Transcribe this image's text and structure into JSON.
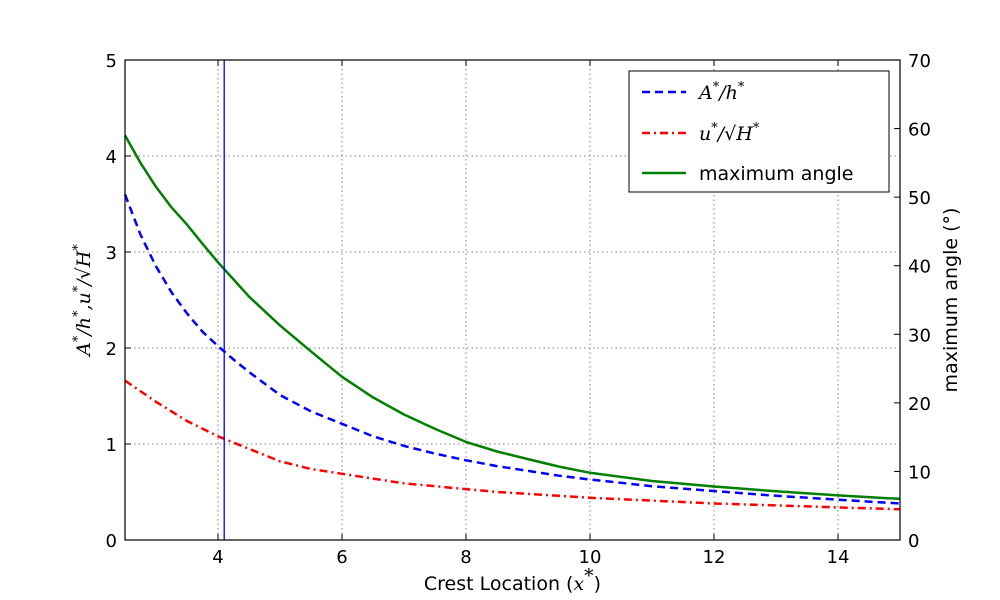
{
  "chart_data": {
    "type": "line",
    "xlabel": "Crest Location (x*)",
    "ylabel_left": "A*/h*, u*/√H*",
    "ylabel_right": "maximum angle (°)",
    "xlim": [
      2.5,
      15
    ],
    "ylim_left": [
      0,
      5
    ],
    "ylim_right": [
      0,
      70
    ],
    "x_ticks": [
      4,
      6,
      8,
      10,
      12,
      14
    ],
    "y_ticks_left": [
      0,
      1,
      2,
      3,
      4,
      5
    ],
    "y_ticks_right": [
      0,
      10,
      20,
      30,
      40,
      50,
      60,
      70
    ],
    "grid": true,
    "legend_position": "top-right",
    "vline_x": 4.1,
    "colors": {
      "amplitude": "#0000ff",
      "velocity": "#ff0000",
      "angle": "#008000",
      "vline": "#0000ff"
    },
    "series": [
      {
        "name": "A*/h*",
        "axis": "left",
        "style": "dashed",
        "x": [
          2.5,
          2.75,
          3.0,
          3.25,
          3.5,
          3.75,
          4.0,
          4.25,
          4.5,
          5.0,
          5.5,
          6.0,
          6.5,
          7.0,
          7.5,
          8.0,
          8.5,
          9.0,
          9.5,
          10.0,
          11.0,
          12.0,
          13.0,
          14.0,
          15.0
        ],
        "values": [
          3.6,
          3.18,
          2.85,
          2.58,
          2.36,
          2.17,
          2.02,
          1.88,
          1.75,
          1.51,
          1.34,
          1.21,
          1.08,
          0.98,
          0.9,
          0.83,
          0.77,
          0.72,
          0.67,
          0.63,
          0.56,
          0.51,
          0.46,
          0.42,
          0.38
        ]
      },
      {
        "name": "u*/√H*",
        "axis": "left",
        "style": "dashdot",
        "x": [
          2.5,
          3.0,
          3.5,
          4.0,
          4.5,
          5.0,
          5.5,
          6.0,
          6.5,
          7.0,
          7.5,
          8.0,
          8.5,
          9.0,
          9.5,
          10.0,
          11.0,
          12.0,
          13.0,
          14.0,
          15.0
        ],
        "values": [
          1.66,
          1.44,
          1.24,
          1.08,
          0.95,
          0.82,
          0.74,
          0.69,
          0.64,
          0.59,
          0.56,
          0.53,
          0.5,
          0.48,
          0.46,
          0.44,
          0.41,
          0.38,
          0.36,
          0.34,
          0.32
        ]
      },
      {
        "name": "maximum angle",
        "axis": "right",
        "style": "solid",
        "x": [
          2.5,
          2.75,
          3.0,
          3.25,
          3.5,
          3.75,
          4.0,
          4.25,
          4.5,
          5.0,
          5.5,
          6.0,
          6.5,
          7.0,
          7.5,
          8.0,
          8.5,
          9.0,
          9.5,
          10.0,
          11.0,
          12.0,
          13.0,
          14.0,
          15.0
        ],
        "values": [
          59,
          55,
          51.5,
          48.5,
          46,
          43.2,
          40.5,
          38,
          35.5,
          31.3,
          27.5,
          23.8,
          20.8,
          18.3,
          16.2,
          14.3,
          12.9,
          11.8,
          10.7,
          9.8,
          8.6,
          7.8,
          7.1,
          6.5,
          6.0
        ]
      }
    ]
  }
}
